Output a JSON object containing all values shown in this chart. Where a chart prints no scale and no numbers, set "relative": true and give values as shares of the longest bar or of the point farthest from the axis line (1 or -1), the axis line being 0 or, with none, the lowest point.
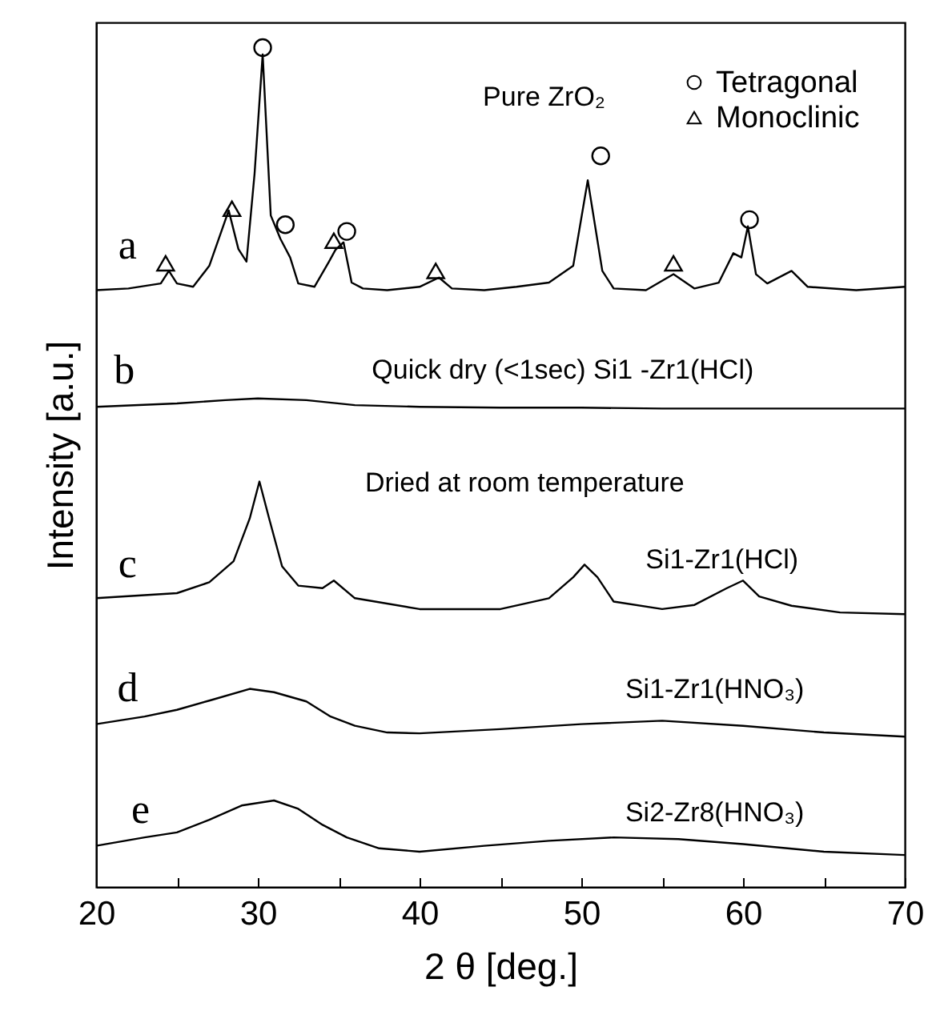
{
  "chart_data": {
    "type": "line",
    "relative": true,
    "xlabel": "2 θ [deg.]",
    "ylabel": "Intensity [a.u.]",
    "xlim": [
      20,
      70
    ],
    "xticks": [
      20,
      {
        "value": 25,
        "label": null
      },
      30,
      {
        "value": 35,
        "label": null
      },
      40,
      {
        "value": 45,
        "label": null
      },
      50,
      {
        "value": 55,
        "label": null
      },
      60,
      {
        "value": 65,
        "label": null
      },
      70
    ],
    "legend": "top right",
    "grid": false,
    "series": [
      {
        "color": "#000000",
        "x": [
          20,
          22,
          24,
          24.5,
          25,
          26,
          27,
          28.2,
          28.8,
          29.3,
          29.8,
          30.3,
          30.8,
          31.4,
          32,
          32.5,
          33.5,
          34.4,
          34.8,
          35.3,
          35.8,
          36.5,
          38,
          40,
          41.2,
          42,
          44,
          46,
          48,
          49.5,
          50.4,
          51.3,
          52,
          54,
          55.7,
          57,
          58.5,
          59.4,
          59.9,
          60.3,
          60.8,
          61.5,
          63,
          64,
          67,
          70
        ],
        "values": [
          0.711,
          0.713,
          0.719,
          0.734,
          0.719,
          0.715,
          0.74,
          0.806,
          0.76,
          0.745,
          0.85,
          0.992,
          0.8,
          0.772,
          0.75,
          0.719,
          0.715,
          0.745,
          0.759,
          0.768,
          0.72,
          0.713,
          0.711,
          0.715,
          0.726,
          0.713,
          0.711,
          0.715,
          0.72,
          0.74,
          0.842,
          0.734,
          0.713,
          0.711,
          0.73,
          0.713,
          0.72,
          0.755,
          0.75,
          0.787,
          0.73,
          0.719,
          0.734,
          0.715,
          0.711,
          0.715
        ]
      },
      {
        "color": "#000000",
        "x": [
          20,
          25,
          28,
          30,
          33,
          36,
          40,
          45,
          50,
          55,
          60,
          65,
          70
        ],
        "values": [
          0.572,
          0.576,
          0.58,
          0.582,
          0.58,
          0.574,
          0.572,
          0.571,
          0.571,
          0.57,
          0.57,
          0.57,
          0.57
        ]
      },
      {
        "color": "#000000",
        "x": [
          20,
          25,
          27,
          28.5,
          29.5,
          30.1,
          30.7,
          31.5,
          32.5,
          34,
          34.7,
          36,
          40,
          45,
          48,
          49.5,
          50.2,
          51,
          52,
          55,
          57,
          59,
          60,
          61,
          63,
          66,
          70
        ],
        "values": [
          0.344,
          0.35,
          0.363,
          0.388,
          0.439,
          0.483,
          0.439,
          0.382,
          0.359,
          0.356,
          0.365,
          0.344,
          0.331,
          0.331,
          0.344,
          0.369,
          0.384,
          0.369,
          0.34,
          0.331,
          0.336,
          0.356,
          0.365,
          0.346,
          0.335,
          0.327,
          0.325
        ]
      },
      {
        "color": "#000000",
        "x": [
          20,
          23,
          25,
          27,
          29.5,
          31,
          33,
          34.5,
          36,
          38,
          40,
          45,
          50,
          55,
          60,
          65,
          70
        ],
        "values": [
          0.194,
          0.203,
          0.211,
          0.222,
          0.236,
          0.232,
          0.221,
          0.203,
          0.192,
          0.184,
          0.183,
          0.188,
          0.194,
          0.198,
          0.192,
          0.184,
          0.179
        ]
      },
      {
        "color": "#000000",
        "x": [
          20,
          23,
          25,
          27,
          29,
          31,
          32.5,
          34,
          35.5,
          37.5,
          40,
          44,
          48,
          52,
          56,
          60,
          65,
          70
        ],
        "values": [
          0.049,
          0.059,
          0.065,
          0.08,
          0.097,
          0.103,
          0.093,
          0.074,
          0.059,
          0.046,
          0.042,
          0.049,
          0.055,
          0.059,
          0.057,
          0.051,
          0.042,
          0.038
        ]
      },
      {
        "type": "scatter",
        "name": "Tetragonal",
        "marker": "circle",
        "color": "#000000",
        "x": [
          30.3,
          31.7,
          35.5,
          51.2,
          60.4
        ],
        "values": [
          1.0,
          0.789,
          0.781,
          0.871,
          0.795
        ]
      },
      {
        "type": "scatter",
        "name": "Monoclinic",
        "marker": "triangle",
        "color": "#000000",
        "x": [
          24.3,
          28.4,
          34.7,
          41.0,
          55.7
        ],
        "values": [
          0.743,
          0.808,
          0.77,
          0.734,
          0.743
        ]
      }
    ],
    "annotations": [
      "a",
      "Pure ZrO₂",
      "b",
      "Quick dry (<1sec)  Si1 -Zr1(HCl)",
      "Dried at room temperature",
      "c",
      "Si1-Zr1(HCl)",
      "d",
      "Si1-Zr1(HNO₃)",
      "e",
      "Si2-Zr8(HNO₃)"
    ]
  }
}
